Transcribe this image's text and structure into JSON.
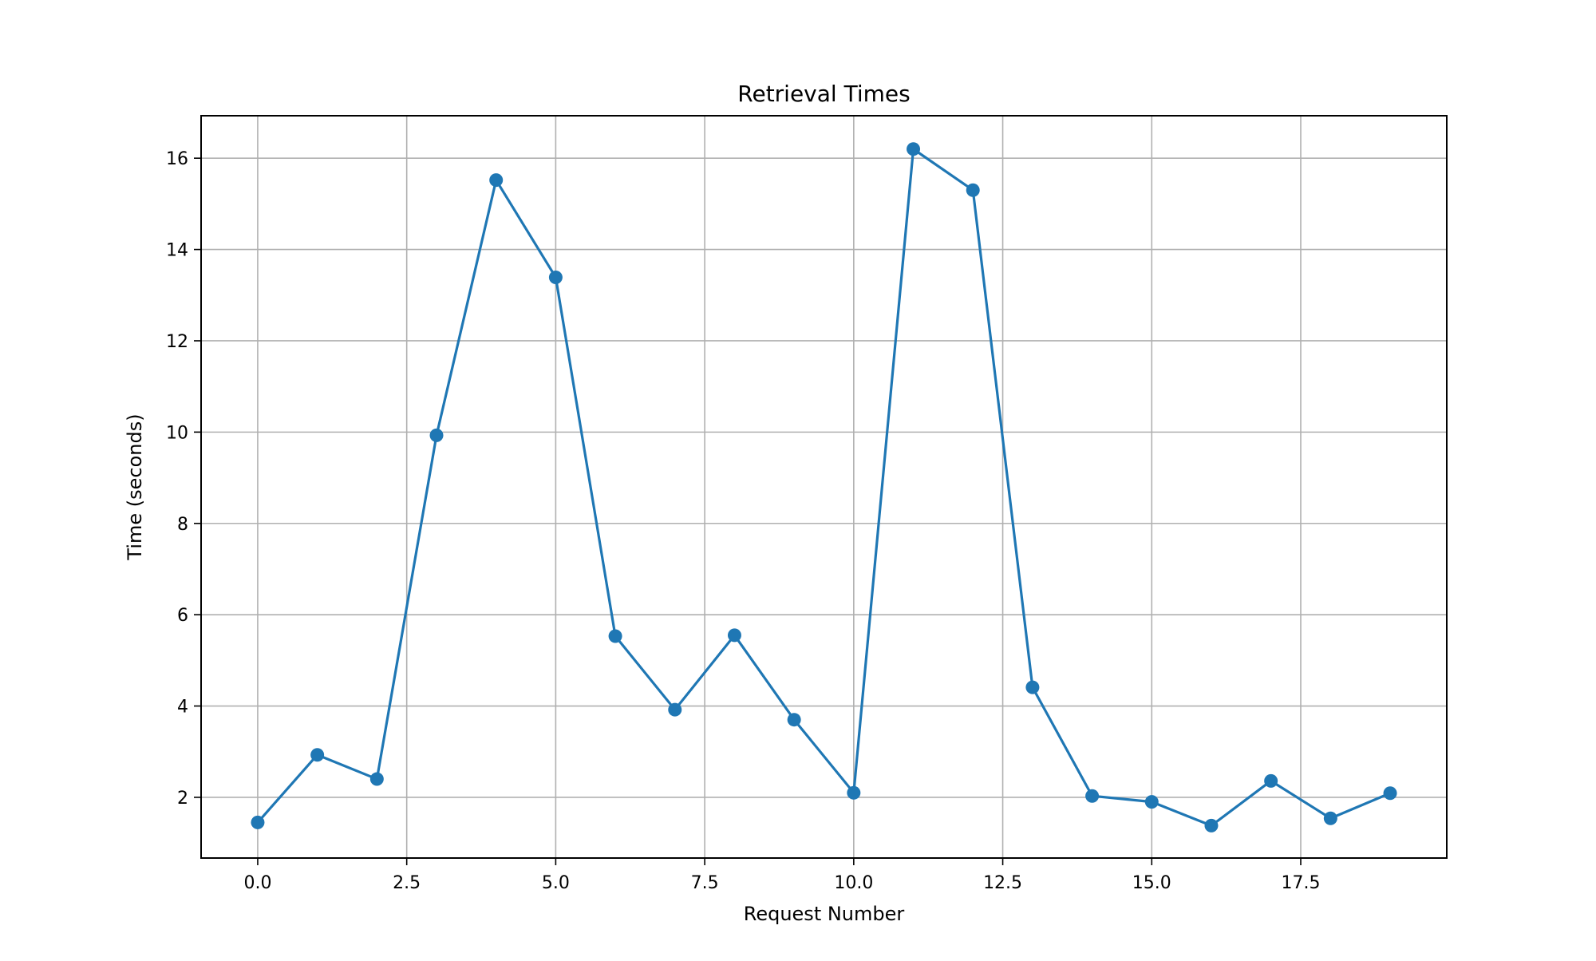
{
  "chart_data": {
    "type": "line",
    "title": "Retrieval Times",
    "xlabel": "Request Number",
    "ylabel": "Time (seconds)",
    "xlim": [
      -0.95,
      19.95
    ],
    "ylim": [
      0.67,
      16.93
    ],
    "x_ticks": [
      0.0,
      2.5,
      5.0,
      7.5,
      10.0,
      12.5,
      15.0,
      17.5
    ],
    "x_tick_labels": [
      "0.0",
      "2.5",
      "5.0",
      "7.5",
      "10.0",
      "12.5",
      "15.0",
      "17.5"
    ],
    "y_ticks": [
      2,
      4,
      6,
      8,
      10,
      12,
      14,
      16
    ],
    "y_tick_labels": [
      "2",
      "4",
      "6",
      "8",
      "10",
      "12",
      "14",
      "16"
    ],
    "grid": true,
    "series": [
      {
        "color": "#1f77b4",
        "marker": "circle",
        "x": [
          0,
          1,
          2,
          3,
          4,
          5,
          6,
          7,
          8,
          9,
          10,
          11,
          12,
          13,
          14,
          15,
          16,
          17,
          18,
          19
        ],
        "y": [
          1.45,
          2.93,
          2.4,
          9.93,
          15.52,
          13.39,
          5.53,
          3.92,
          5.55,
          3.7,
          2.1,
          16.2,
          15.3,
          4.41,
          2.03,
          1.9,
          1.38,
          2.36,
          1.54,
          2.09
        ]
      }
    ]
  }
}
